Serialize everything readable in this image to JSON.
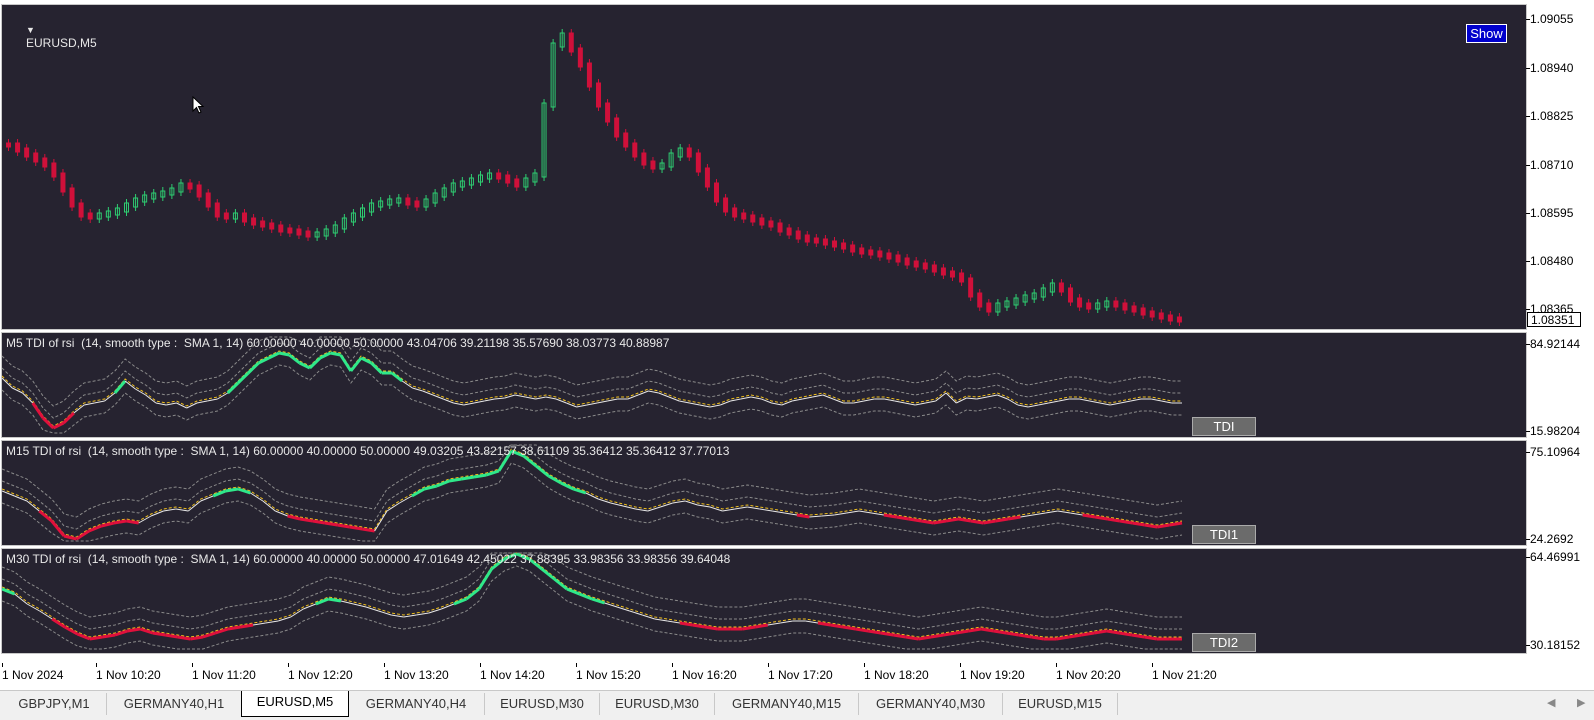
{
  "main_pane": {
    "symbol_label": "EURUSD,M5",
    "show_button": "Show",
    "price_ticks": [
      "1.09055",
      "1.08940",
      "1.08825",
      "1.08710",
      "1.08595",
      "1.08480",
      "1.08365"
    ],
    "current_price": "1.08351",
    "colors": {
      "bull": "#2ecc71",
      "bear": "#d0103a",
      "background": "#262330"
    }
  },
  "indicators": [
    {
      "label": "M5 TDI of rsi  (14, smooth type :  SMA 1, 14) 60.00000 40.00000 50.00000 43.04706 39.21198 35.57690 38.03773 40.88987",
      "button": "TDI",
      "max": "84.92144",
      "min": "15.98204"
    },
    {
      "label": "M15 TDI of rsi  (14, smooth type :  SMA 1, 14) 60.00000 40.00000 50.00000 49.03205 43.82157 38.61109 35.36412 35.36412 37.77013",
      "button": "TDI1",
      "max": "75.10964",
      "min": "24.2692"
    },
    {
      "label": "M30 TDI of rsi  (14, smooth type :  SMA 1, 14) 60.00000 40.00000 50.00000 47.01649 42.45022 37.88395 33.98356 33.98356 39.64048",
      "button": "TDI2",
      "max": "64.46991",
      "min": "30.18152"
    }
  ],
  "time_axis": [
    "1 Nov 2024",
    "1 Nov 10:20",
    "1 Nov 11:20",
    "1 Nov 12:20",
    "1 Nov 13:20",
    "1 Nov 14:20",
    "1 Nov 15:20",
    "1 Nov 16:20",
    "1 Nov 17:20",
    "1 Nov 18:20",
    "1 Nov 19:20",
    "1 Nov 20:20",
    "1 Nov 21:20"
  ],
  "tabs": [
    "GBPJPY,M1",
    "GERMANY40,H1",
    "EURUSD,M5",
    "GERMANY40,H4",
    "EURUSD,M30",
    "EURUSD,M30",
    "GERMANY40,M15",
    "GERMANY40,M30",
    "EURUSD,M15"
  ],
  "active_tab": "EURUSD,M5",
  "tdi_colors": {
    "up": "#2fe88a",
    "down": "#e0103c",
    "neutral": "#e8e8e8",
    "signal": "#f0c020",
    "bands": "#8a8a8a"
  }
}
